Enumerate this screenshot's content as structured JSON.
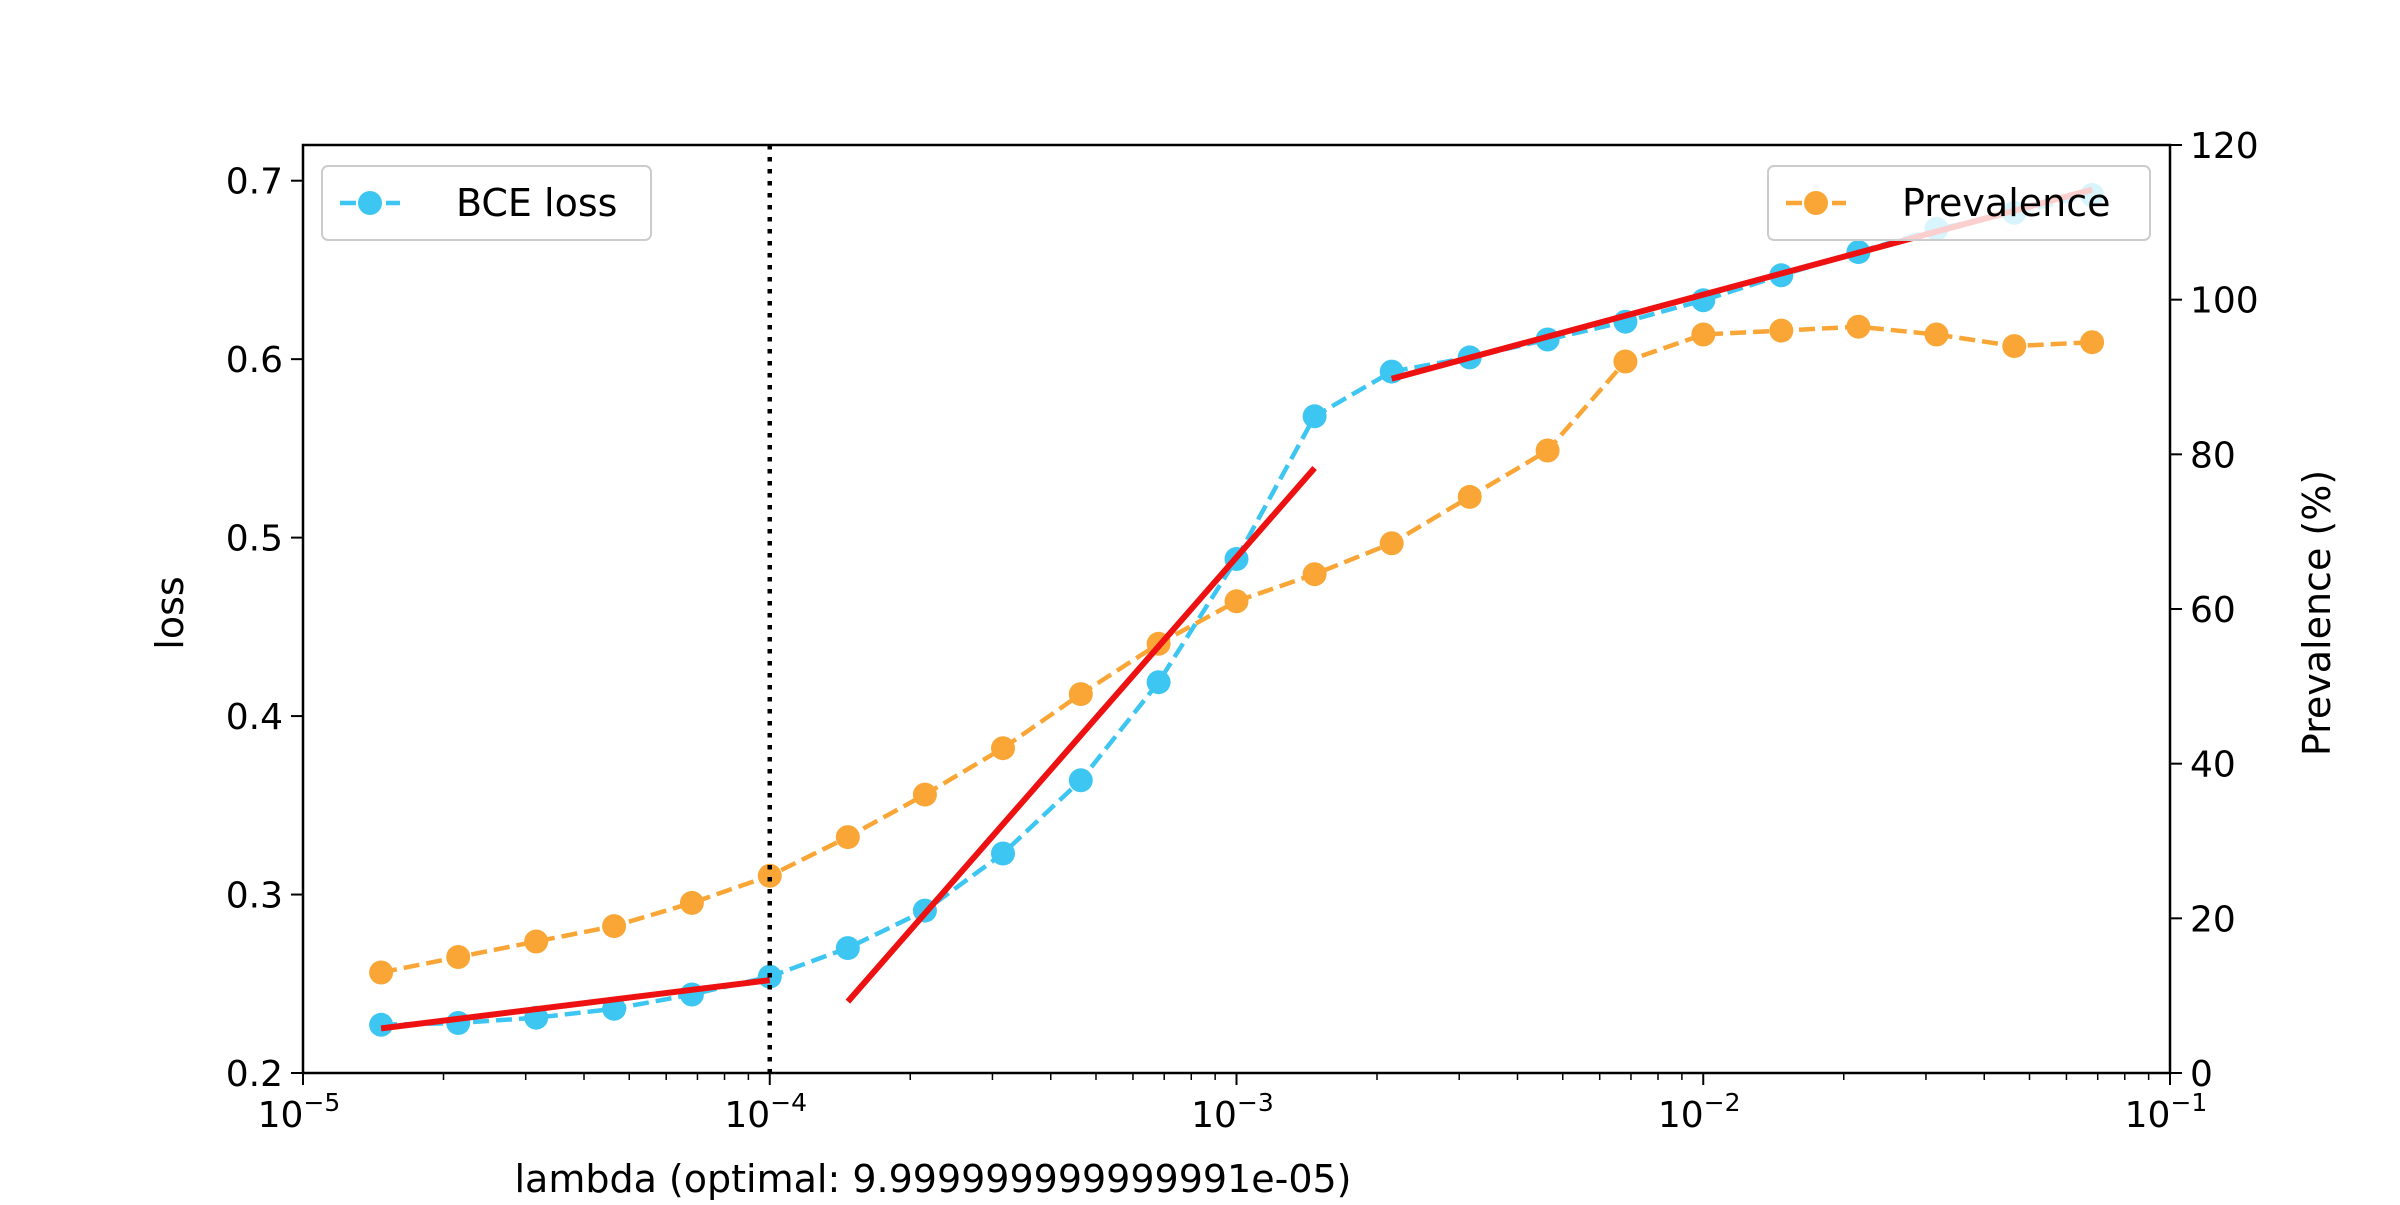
{
  "chart_data": {
    "type": "line",
    "xlabel": "lambda (optimal: 9.999999999999991e-05)",
    "ylabel_left": "loss",
    "ylabel_right": "Prevalence (%)",
    "x_scale": "log",
    "xlim": [
      1e-05,
      0.1
    ],
    "ylim_left": [
      0.2,
      0.72
    ],
    "ylim_right": [
      0,
      120
    ],
    "x_ticks": [
      {
        "base": "10",
        "exp": "−5"
      },
      {
        "base": "10",
        "exp": "−4"
      },
      {
        "base": "10",
        "exp": "−3"
      },
      {
        "base": "10",
        "exp": "−2"
      },
      {
        "base": "10",
        "exp": "−1"
      }
    ],
    "y_ticks_left": [
      "0.2",
      "0.3",
      "0.4",
      "0.5",
      "0.6",
      "0.7"
    ],
    "y_ticks_right": [
      "0",
      "20",
      "40",
      "60",
      "80",
      "100",
      "120"
    ],
    "grid": false,
    "x": [
      1.47e-05,
      2.15e-05,
      3.16e-05,
      4.64e-05,
      6.81e-05,
      0.0001,
      0.000147,
      0.000215,
      0.000316,
      0.000464,
      0.000681,
      0.001,
      0.00147,
      0.00215,
      0.00316,
      0.00464,
      0.00681,
      0.01,
      0.0147,
      0.0215,
      0.0316,
      0.0464,
      0.0681
    ],
    "series": [
      {
        "name": "BCE loss",
        "axis": "left",
        "color": "#3EC6F2",
        "style": "dashed",
        "marker": "circle",
        "values": [
          0.227,
          0.228,
          0.231,
          0.236,
          0.244,
          0.254,
          0.27,
          0.291,
          0.323,
          0.364,
          0.419,
          0.488,
          0.568,
          0.593,
          0.601,
          0.611,
          0.621,
          0.633,
          0.647,
          0.66,
          0.673,
          0.682,
          0.692
        ]
      },
      {
        "name": "Prevalence",
        "axis": "right",
        "color": "#F9A636",
        "style": "dashed",
        "marker": "circle",
        "values": [
          13,
          15,
          17,
          19,
          22,
          25.5,
          30.5,
          36,
          42,
          49,
          55.5,
          61,
          64.5,
          68.5,
          74.5,
          80.5,
          92,
          95.5,
          96,
          96.5,
          95.5,
          94,
          94.5
        ]
      }
    ],
    "fit_lines": [
      {
        "color": "#EE1111",
        "axis": "left",
        "x": [
          1.47e-05,
          0.0001
        ],
        "y": [
          0.225,
          0.252
        ]
      },
      {
        "color": "#EE1111",
        "axis": "left",
        "x": [
          0.000147,
          0.00147
        ],
        "y": [
          0.24,
          0.539
        ]
      },
      {
        "color": "#EE1111",
        "axis": "left",
        "x": [
          0.00215,
          0.0681
        ],
        "y": [
          0.589,
          0.695
        ]
      }
    ],
    "vline": {
      "x": 0.0001,
      "style": "dotted",
      "color": "#000000"
    },
    "legends": [
      {
        "placement": "top-left",
        "label": "BCE loss",
        "series": 0
      },
      {
        "placement": "top-right",
        "label": "Prevalence",
        "series": 1
      }
    ]
  }
}
